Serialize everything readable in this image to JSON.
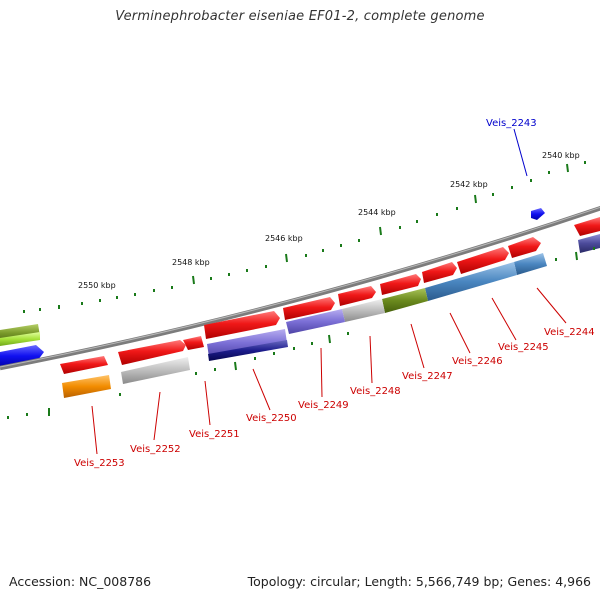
{
  "title": "Verminephrobacter eiseniae EF01-2, complete genome",
  "footer": {
    "accession": "Accession: NC_008786",
    "summary": "Topology: circular; Length: 5,566,749 bp; Genes: 4,966"
  },
  "colors": {
    "tick": "#1a7a1a",
    "backbone": "#7c7c7c",
    "gene_label_red": "#cc0000",
    "gene_label_blue": "#0000cc",
    "scale_label": "#111111"
  },
  "scale": {
    "unit": "kbp",
    "labels": [
      "2540 kbp",
      "2542 kbp",
      "2544 kbp",
      "2546 kbp",
      "2548 kbp",
      "2550 kbp"
    ]
  },
  "gene_labels": [
    {
      "id": "Veis_2243",
      "color": "blue"
    },
    {
      "id": "Veis_2244",
      "color": "red"
    },
    {
      "id": "Veis_2245",
      "color": "red"
    },
    {
      "id": "Veis_2246",
      "color": "red"
    },
    {
      "id": "Veis_2247",
      "color": "red"
    },
    {
      "id": "Veis_2248",
      "color": "red"
    },
    {
      "id": "Veis_2249",
      "color": "red"
    },
    {
      "id": "Veis_2250",
      "color": "red"
    },
    {
      "id": "Veis_2251",
      "color": "red"
    },
    {
      "id": "Veis_2252",
      "color": "red"
    },
    {
      "id": "Veis_2253",
      "color": "red"
    }
  ],
  "feature_colors": {
    "red": "#e8141a",
    "blue": "#1414ee",
    "navy": "#1c1c8c",
    "purple": "#7b6fd6",
    "light_gray": "#bdbdbd",
    "olive": "#6b8a1e",
    "steel_blue": "#4a86c0",
    "orange": "#f28c00",
    "lime": "#a8e23a",
    "olive_green": "#7a9a2a",
    "slate": "#4b4a9a"
  }
}
